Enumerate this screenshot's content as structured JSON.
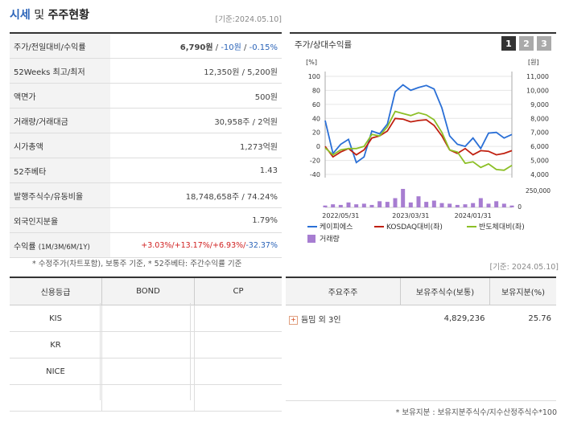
{
  "header": {
    "title_a": "시세",
    "title_b": " 및 ",
    "title_c": "주주현황",
    "asof": "[기준:2024.05.10]"
  },
  "price_table": {
    "rows": [
      {
        "label": "주가/전일대비/수익률"
      },
      {
        "label": "52Weeks 최고/최저",
        "value": "12,350원 / 5,200원"
      },
      {
        "label": "액면가",
        "value": "500원"
      },
      {
        "label": "거래량/거래대금",
        "value": "30,958주 / 2억원"
      },
      {
        "label": "시가총액",
        "value": "1,273억원"
      },
      {
        "label": "52주베타",
        "value": "1.43"
      },
      {
        "label": "발행주식수/유동비율",
        "value": "18,748,658주 / 74.24%"
      },
      {
        "label": "외국인지분율",
        "value": "1.79%"
      },
      {
        "label": "수익률",
        "label_sub": "(1M/3M/6M/1Y)"
      }
    ],
    "price": "6,790원",
    "change": "-10원",
    "change_pct": "-0.15%",
    "returns": [
      "+3.03%/",
      "+13.17%/",
      "+6.93%/",
      "-32.37%"
    ]
  },
  "note1": "* 수정주가(차트포함), 보통주 기준, * 52주베타: 주간수익률 기준",
  "asof2": "[기준: 2024.05.10]",
  "chart_panel": {
    "title": "주가/상대수익률",
    "buttons": [
      "1",
      "2",
      "3"
    ]
  },
  "chart_data": {
    "type": "line",
    "left_unit": "[%]",
    "right_unit": "[원]",
    "left_ticks": [
      "100",
      "80",
      "60",
      "40",
      "20",
      "0",
      "-20",
      "-40"
    ],
    "right_ticks": [
      "11,000",
      "10,000",
      "9,000",
      "8,000",
      "7,000",
      "6,000",
      "5,000",
      "4,000"
    ],
    "volume_tick": "250,000",
    "volume_tick_zero": "0",
    "x_ticks": [
      "2022/05/31",
      "2023/03/31",
      "2024/01/31"
    ],
    "ylim": [
      -40,
      100
    ],
    "series": [
      {
        "name": "케이피에스",
        "color": "#2a6fd6",
        "values": [
          37,
          -10,
          3,
          10,
          -23,
          -15,
          22,
          18,
          32,
          78,
          88,
          80,
          84,
          87,
          82,
          55,
          15,
          3,
          0,
          12,
          -3,
          19,
          20,
          12,
          17
        ]
      },
      {
        "name": "KOSDAQ대비(좌)",
        "color": "#c02010",
        "values": [
          0,
          -15,
          -8,
          -3,
          -12,
          -5,
          12,
          15,
          22,
          40,
          39,
          35,
          37,
          38,
          30,
          15,
          -5,
          -10,
          -3,
          -12,
          -6,
          -7,
          -12,
          -10,
          -6
        ]
      },
      {
        "name": "반도체대비(좌)",
        "color": "#8cbf26",
        "values": [
          -2,
          -12,
          -5,
          -3,
          -3,
          0,
          17,
          15,
          28,
          50,
          47,
          44,
          48,
          45,
          38,
          20,
          -5,
          -8,
          -24,
          -22,
          -30,
          -25,
          -33,
          -34,
          -27
        ]
      }
    ],
    "volume": {
      "name": "거래량",
      "color": "#a77dd1",
      "values": [
        3,
        5,
        4,
        8,
        5,
        6,
        4,
        10,
        9,
        15,
        30,
        8,
        18,
        9,
        11,
        7,
        6,
        4,
        5,
        7,
        15,
        6,
        10,
        6,
        3
      ]
    }
  },
  "credit_table": {
    "headers": [
      "신용등급",
      "BOND",
      "CP"
    ],
    "rows": [
      [
        "KIS",
        "",
        ""
      ],
      [
        "KR",
        "",
        ""
      ],
      [
        "NICE",
        "",
        ""
      ],
      [
        "",
        "",
        ""
      ]
    ]
  },
  "holder_table": {
    "headers": [
      "주요주주",
      "보유주식수(보통)",
      "보유지분(%)"
    ],
    "rows": [
      {
        "name": "듐밈 외 3인",
        "shares": "4,829,236",
        "pct": "25.76"
      }
    ]
  },
  "note2": "* 보유지분 : 보유지분주식수/지수산정주식수*100"
}
